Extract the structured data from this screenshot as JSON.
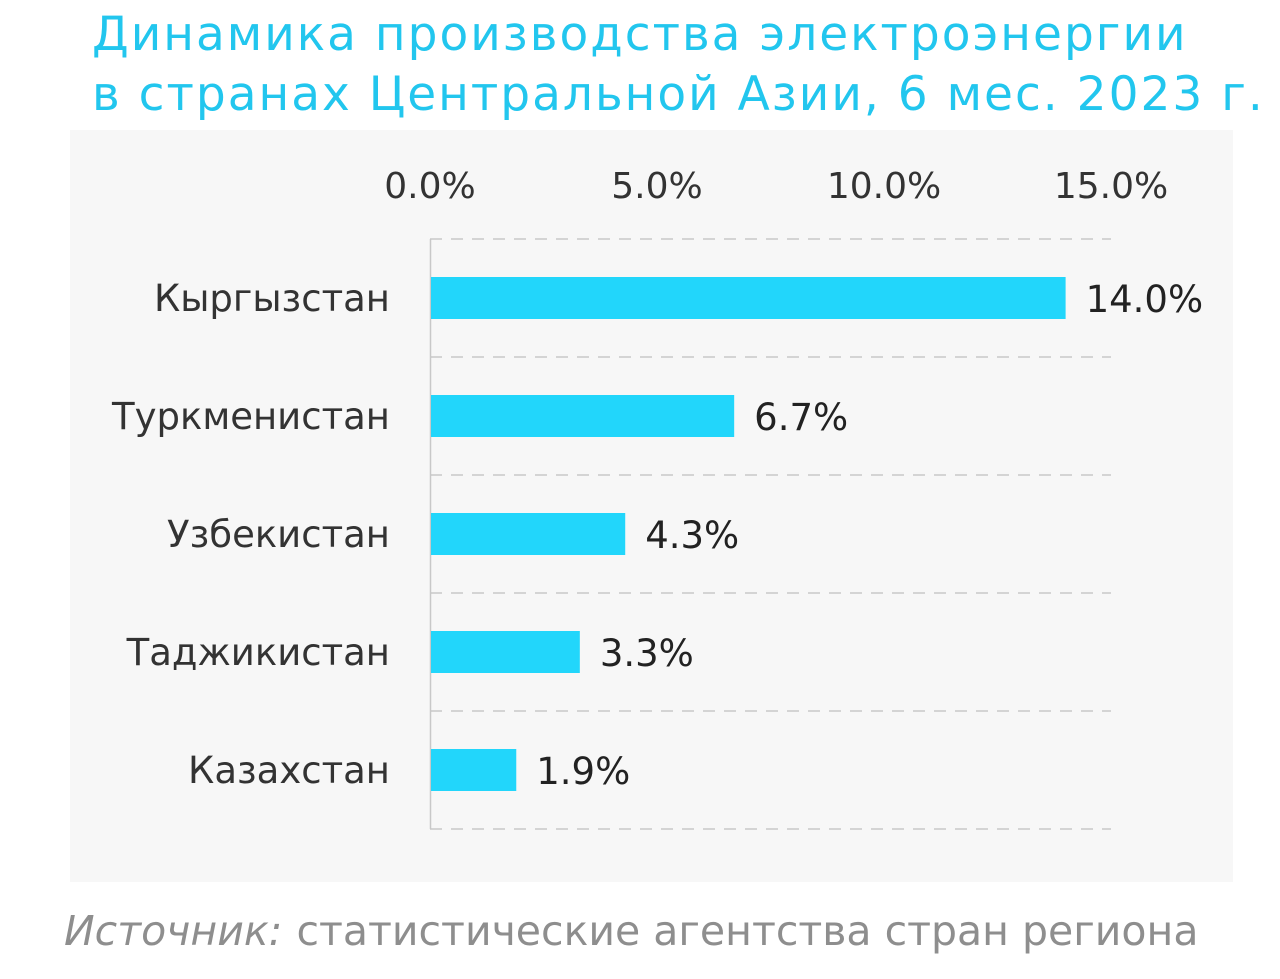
{
  "chart_data": {
    "type": "bar",
    "orientation": "horizontal",
    "title": [
      "Динамика производства электроэнергии",
      "в странах Центральной Азии, 6 мес. 2023 г."
    ],
    "categories": [
      "Кыргызстан",
      "Туркменистан",
      "Узбекистан",
      "Таджикистан",
      "Казахстан"
    ],
    "values": [
      14.0,
      6.7,
      4.3,
      3.3,
      1.9
    ],
    "value_labels": [
      "14.0%",
      "6.7%",
      "4.3%",
      "3.3%",
      "1.9%"
    ],
    "xlim": [
      0,
      15
    ],
    "x_ticks": [
      0,
      5,
      10,
      15
    ],
    "x_tick_labels": [
      "0.0%",
      "5.0%",
      "10.0%",
      "15.0%"
    ],
    "x_axis_position": "top",
    "grid": "horizontal dashed",
    "xlabel": "",
    "ylabel": "",
    "colors": {
      "bar": "#22d6fb",
      "title": "#22c6ee",
      "panel": "#f7f7f7"
    }
  },
  "source": {
    "label": "Источник:",
    "text": "статистические агентства стран региона"
  }
}
